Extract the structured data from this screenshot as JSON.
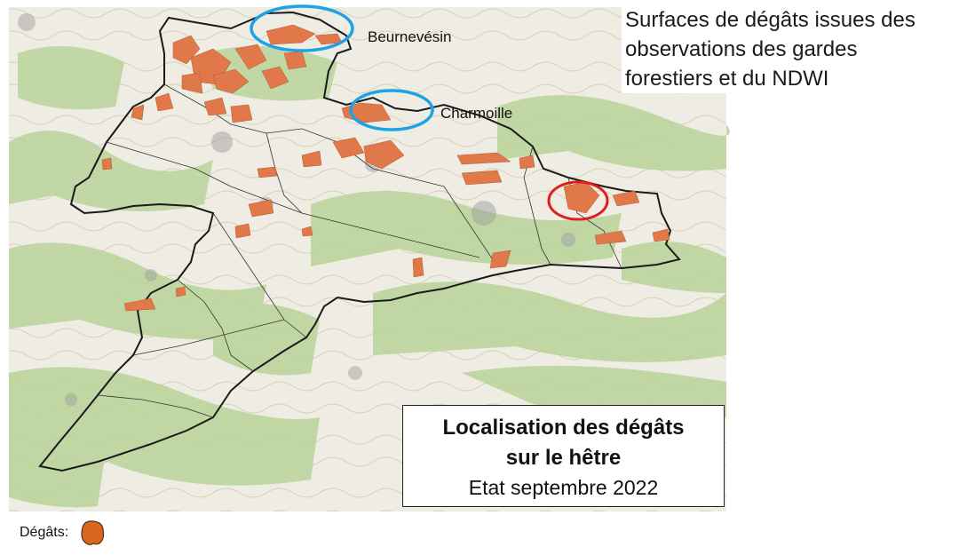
{
  "heading": {
    "lines": [
      "Surfaces de dégâts issues des",
      "observations des gardes",
      "forestiers et du NDWI"
    ]
  },
  "title_box": {
    "line1": "Localisation des dégâts",
    "line2": "sur le hêtre",
    "line3": "Etat septembre 2022"
  },
  "places": {
    "beurnevesin": "Beurnevésin",
    "charmoille": "Charmoille"
  },
  "legend": {
    "label": "Dégâts:",
    "icon": "damage-area-swatch"
  },
  "colors": {
    "damage_fill": "#e0784a",
    "damage_legend": "#d9681e",
    "highlight_blue": "#1aa3e6",
    "highlight_red": "#e01e1e",
    "boundary": "#1a1a1a",
    "forest_green": "#b9d49a",
    "map_base": "#f1efe6"
  }
}
